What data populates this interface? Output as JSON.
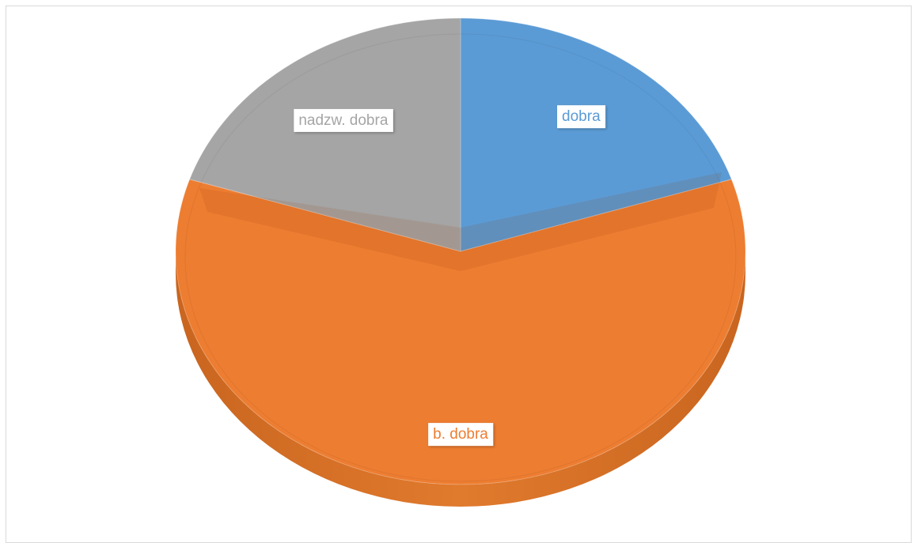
{
  "chart_data": {
    "type": "pie",
    "style": "3d",
    "slices": [
      {
        "label": "dobra",
        "value": 0.2,
        "color": "#5b9bd5"
      },
      {
        "label": "b. dobra",
        "value": 0.6,
        "color": "#ed7d31"
      },
      {
        "label": "nadzw. dobra",
        "value": 0.2,
        "color": "#a5a5a5"
      }
    ],
    "legend": "none",
    "data_labels": "category name"
  }
}
